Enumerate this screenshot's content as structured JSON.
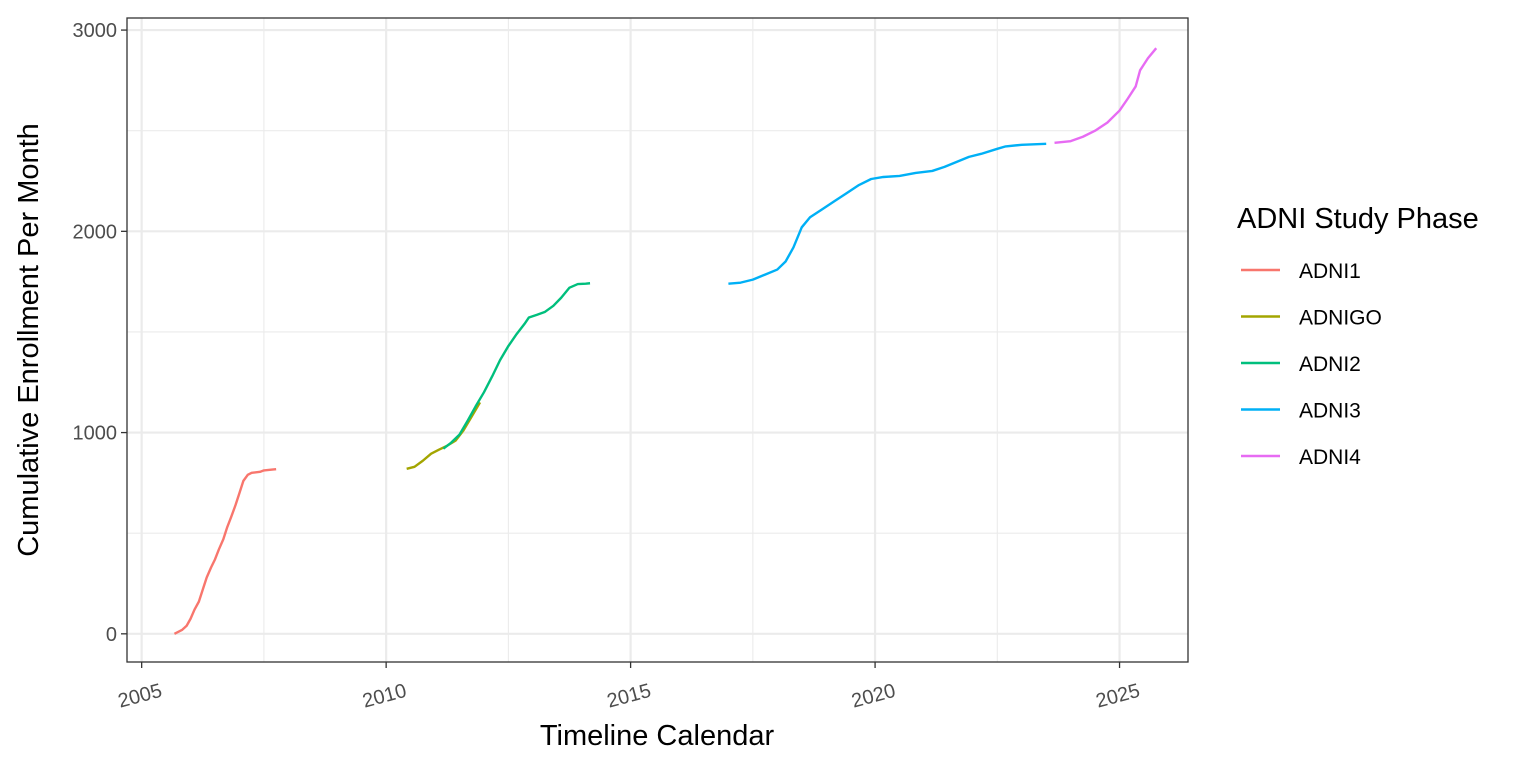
{
  "chart_data": {
    "type": "line",
    "title": "",
    "xlabel": "Timeline Calendar",
    "ylabel": "Cumulative Enrollment Per Month",
    "xlim": [
      2004.7,
      2026.4
    ],
    "ylim": [
      -140,
      3060
    ],
    "x_ticks": [
      2005,
      2010,
      2015,
      2020,
      2025
    ],
    "x_tick_labels": [
      "2005",
      "2010",
      "2015",
      "2020",
      "2025"
    ],
    "y_ticks": [
      0,
      1000,
      2000,
      3000
    ],
    "y_tick_labels": [
      "0",
      "1000",
      "2000",
      "3000"
    ],
    "grid": true,
    "legend": {
      "title": "ADNI Study Phase",
      "position": "right"
    },
    "series": [
      {
        "name": "ADNI1",
        "color": "#F8766D",
        "points": [
          [
            2005.67,
            0
          ],
          [
            2005.83,
            20
          ],
          [
            2005.92,
            40
          ],
          [
            2006.0,
            75
          ],
          [
            2006.08,
            120
          ],
          [
            2006.17,
            160
          ],
          [
            2006.25,
            220
          ],
          [
            2006.33,
            280
          ],
          [
            2006.42,
            330
          ],
          [
            2006.5,
            370
          ],
          [
            2006.58,
            420
          ],
          [
            2006.67,
            470
          ],
          [
            2006.75,
            530
          ],
          [
            2006.83,
            580
          ],
          [
            2006.92,
            640
          ],
          [
            2007.0,
            700
          ],
          [
            2007.08,
            760
          ],
          [
            2007.17,
            790
          ],
          [
            2007.25,
            800
          ],
          [
            2007.42,
            805
          ],
          [
            2007.5,
            812
          ],
          [
            2007.67,
            816
          ],
          [
            2007.75,
            818
          ]
        ]
      },
      {
        "name": "ADNIGO",
        "color": "#A3A500",
        "points": [
          [
            2010.42,
            820
          ],
          [
            2010.58,
            830
          ],
          [
            2010.75,
            860
          ],
          [
            2010.92,
            895
          ],
          [
            2011.08,
            915
          ],
          [
            2011.25,
            935
          ],
          [
            2011.42,
            960
          ],
          [
            2011.58,
            1010
          ],
          [
            2011.75,
            1080
          ],
          [
            2011.92,
            1150
          ]
        ]
      },
      {
        "name": "ADNI2",
        "color": "#00BF7D",
        "points": [
          [
            2011.17,
            920
          ],
          [
            2011.33,
            950
          ],
          [
            2011.5,
            990
          ],
          [
            2011.67,
            1060
          ],
          [
            2011.83,
            1130
          ],
          [
            2012.0,
            1200
          ],
          [
            2012.17,
            1280
          ],
          [
            2012.33,
            1360
          ],
          [
            2012.5,
            1430
          ],
          [
            2012.67,
            1490
          ],
          [
            2012.83,
            1540
          ],
          [
            2012.92,
            1572
          ],
          [
            2013.08,
            1585
          ],
          [
            2013.25,
            1600
          ],
          [
            2013.42,
            1630
          ],
          [
            2013.58,
            1670
          ],
          [
            2013.75,
            1720
          ],
          [
            2013.92,
            1738
          ],
          [
            2014.08,
            1740
          ],
          [
            2014.17,
            1742
          ]
        ]
      },
      {
        "name": "ADNI3",
        "color": "#00B0F6",
        "points": [
          [
            2017.0,
            1740
          ],
          [
            2017.25,
            1745
          ],
          [
            2017.5,
            1760
          ],
          [
            2017.75,
            1785
          ],
          [
            2018.0,
            1810
          ],
          [
            2018.17,
            1850
          ],
          [
            2018.33,
            1920
          ],
          [
            2018.5,
            2020
          ],
          [
            2018.67,
            2070
          ],
          [
            2018.92,
            2110
          ],
          [
            2019.17,
            2150
          ],
          [
            2019.42,
            2190
          ],
          [
            2019.67,
            2230
          ],
          [
            2019.92,
            2260
          ],
          [
            2020.17,
            2270
          ],
          [
            2020.5,
            2275
          ],
          [
            2020.83,
            2290
          ],
          [
            2021.17,
            2300
          ],
          [
            2021.42,
            2320
          ],
          [
            2021.67,
            2345
          ],
          [
            2021.92,
            2370
          ],
          [
            2022.17,
            2385
          ],
          [
            2022.5,
            2410
          ],
          [
            2022.67,
            2422
          ],
          [
            2023.0,
            2430
          ],
          [
            2023.5,
            2435
          ]
        ]
      },
      {
        "name": "ADNI4",
        "color": "#E76BF3",
        "points": [
          [
            2023.67,
            2440
          ],
          [
            2024.0,
            2448
          ],
          [
            2024.25,
            2470
          ],
          [
            2024.5,
            2500
          ],
          [
            2024.75,
            2540
          ],
          [
            2025.0,
            2600
          ],
          [
            2025.17,
            2660
          ],
          [
            2025.33,
            2720
          ],
          [
            2025.42,
            2800
          ],
          [
            2025.58,
            2860
          ],
          [
            2025.75,
            2910
          ]
        ]
      }
    ]
  }
}
